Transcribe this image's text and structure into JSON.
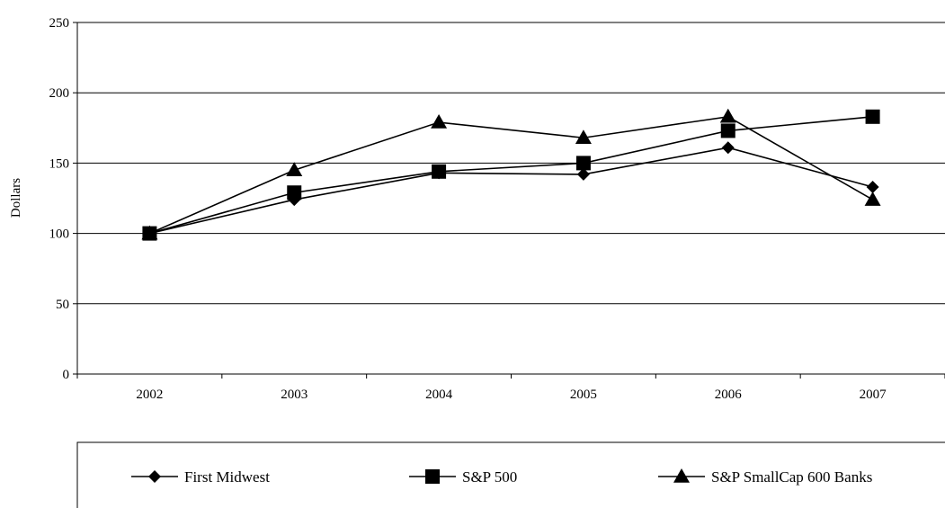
{
  "chart_data": {
    "type": "line",
    "categories": [
      "2002",
      "2003",
      "2004",
      "2005",
      "2006",
      "2007"
    ],
    "ylabel": "Dollars",
    "xlabel": "",
    "ylim": [
      0,
      250
    ],
    "yticks": [
      0,
      50,
      100,
      150,
      200,
      250
    ],
    "grid": "horizontal",
    "legend_position": "bottom",
    "series": [
      {
        "name": "First Midwest",
        "marker": "diamond",
        "values": [
          100,
          124,
          143,
          142,
          161,
          133
        ]
      },
      {
        "name": "S&P 500",
        "marker": "square",
        "values": [
          100,
          129,
          144,
          150,
          173,
          183
        ]
      },
      {
        "name": "S&P SmallCap 600 Banks",
        "marker": "triangle",
        "values": [
          100,
          145,
          179,
          168,
          183,
          124
        ]
      }
    ],
    "color": "#000000"
  }
}
